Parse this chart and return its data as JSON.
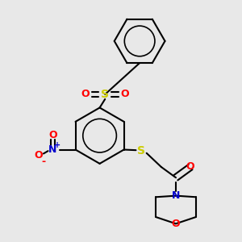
{
  "bg_color": "#e8e8e8",
  "bond_color": "#000000",
  "line_width": 1.5,
  "colors": {
    "S": "#cccc00",
    "O": "#ff0000",
    "N": "#0000cc"
  },
  "font_size": 9
}
